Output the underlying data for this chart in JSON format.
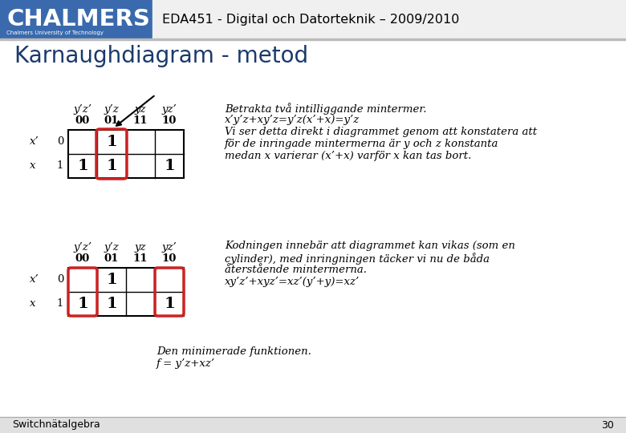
{
  "header_bg": "#3a6aad",
  "header_text": "CHALMERS",
  "header_sub": "Chalmers University of Technology",
  "course_text": "EDA451 - Digital och Datorteknik – 2009/2010",
  "slide_title": "Karnaughdiagram - metod",
  "title_color": "#1a3a6b",
  "body_bg": "#ffffff",
  "separator_color": "#bbbbbb",
  "footer_text": "Switchnätalgebra",
  "footer_num": "30",
  "table1_col_labels": [
    "y’z’",
    "y’z",
    "yz",
    "yz’"
  ],
  "table1_col_codes": [
    "00",
    "01",
    "11",
    "10"
  ],
  "table1_row_labels_left": [
    "x’",
    "x"
  ],
  "table1_row_labels_num": [
    "0",
    "1"
  ],
  "table1_values": [
    [
      0,
      1,
      0,
      0
    ],
    [
      1,
      1,
      0,
      1
    ]
  ],
  "table2_col_labels": [
    "y’z’",
    "y’z",
    "yz",
    "yz’"
  ],
  "table2_col_codes": [
    "00",
    "01",
    "11",
    "10"
  ],
  "table2_row_labels_left": [
    "x’",
    "x"
  ],
  "table2_row_labels_num": [
    "0",
    "1"
  ],
  "table2_values": [
    [
      0,
      1,
      0,
      0
    ],
    [
      1,
      1,
      0,
      1
    ]
  ],
  "highlight1_col": 1,
  "highlight1_rows": [
    0,
    1
  ],
  "highlight2_cols": [
    0,
    3
  ],
  "rect_color": "#cc2222",
  "text1_lines": [
    "Betrakta två intilliggande mintermer.",
    "x’y’z+xy’z=y’z(x’+x)=y’z",
    "Vi ser detta direkt i diagrammet genom att konstatera att",
    "för de inringade mintermerna är y och z konstanta",
    "medan x varierar (x’+x) varför x kan tas bort."
  ],
  "text2_lines": [
    "Kodningen innebär att diagrammet kan vikas (som en",
    "cylinder), med inringningen täcker vi nu de båda",
    "återstående mintermerna.",
    "xy’z’+xyz’=xz’(y’+y)=xz’"
  ],
  "text3_lines": [
    "Den minimerade funktionen.",
    "f = y’z+xz’"
  ]
}
